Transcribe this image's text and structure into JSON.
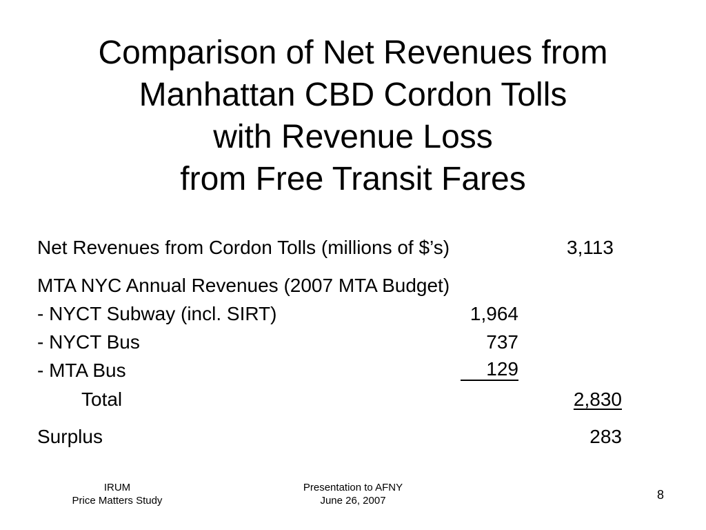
{
  "slide": {
    "title_lines": [
      "Comparison of Net Revenues from",
      "Manhattan CBD Cordon Tolls",
      "with Revenue Loss",
      "from Free Transit Fares"
    ],
    "net_revenues": {
      "label": "Net Revenues from Cordon Tolls (millions of $’s)",
      "value": "3,113"
    },
    "mta_header": "MTA NYC Annual Revenues (2007 MTA Budget)",
    "mta_items": [
      {
        "label": "- NYCT Subway (incl. SIRT)",
        "value": "1,964"
      },
      {
        "label": "- NYCT Bus",
        "value": "737"
      },
      {
        "label": "- MTA Bus",
        "value": "129"
      }
    ],
    "total": {
      "label": "Total",
      "value": "2,830"
    },
    "surplus": {
      "label": "Surplus",
      "value": "283"
    }
  },
  "footer": {
    "left_lines": [
      "IRUM",
      "Price Matters Study"
    ],
    "center_lines": [
      "Presentation to AFNY",
      "June 26, 2007"
    ],
    "page_number": "8"
  }
}
